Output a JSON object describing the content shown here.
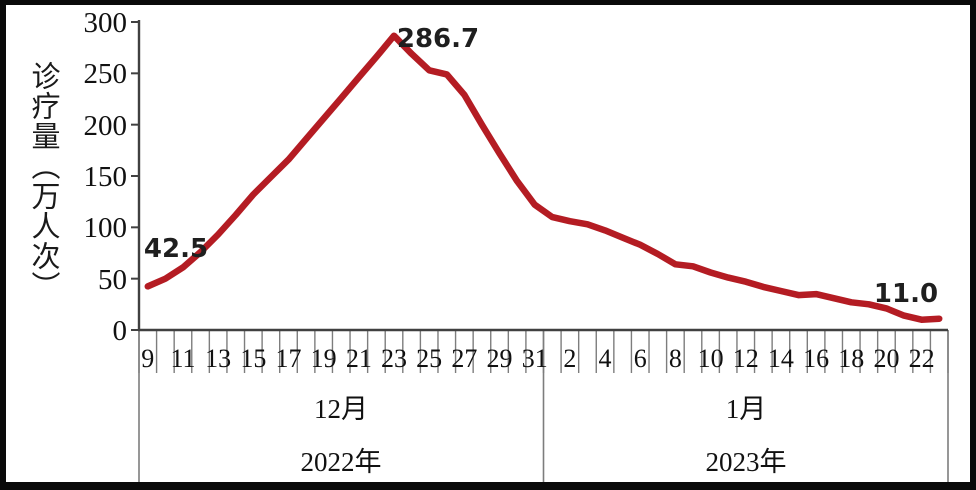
{
  "chart_data": {
    "type": "line",
    "title": "",
    "ylabel": "诊疗量（万人次）",
    "ylim": [
      0,
      300
    ],
    "y_ticks": [
      "300",
      "250",
      "200",
      "150",
      "100",
      "50",
      "0"
    ],
    "line_color": "#b41c23",
    "groups": [
      {
        "month": "12月",
        "year": "2022年",
        "days": [
          9,
          10,
          11,
          12,
          13,
          14,
          15,
          16,
          17,
          18,
          19,
          20,
          21,
          22,
          23,
          24,
          25,
          26,
          27,
          28,
          29,
          30,
          31
        ]
      },
      {
        "month": "1月",
        "year": "2023年",
        "days": [
          1,
          2,
          3,
          4,
          5,
          6,
          7,
          8,
          9,
          10,
          11,
          12,
          13,
          14,
          15,
          16,
          17,
          18,
          19,
          20,
          21,
          22,
          23
        ]
      }
    ],
    "x_tick_labels": [
      "9",
      "",
      "11",
      "",
      "13",
      "",
      "15",
      "",
      "17",
      "",
      "19",
      "",
      "21",
      "",
      "23",
      "",
      "25",
      "",
      "27",
      "",
      "29",
      "",
      "31",
      "",
      "2",
      "",
      "4",
      "",
      "6",
      "",
      "8",
      "",
      "10",
      "",
      "12",
      "",
      "14",
      "",
      "16",
      "",
      "18",
      "",
      "20",
      "",
      "22",
      ""
    ],
    "series": [
      {
        "name": "诊疗量",
        "values": [
          42.5,
          50,
          61,
          76,
          93,
          112,
          132,
          149,
          166,
          186,
          206,
          226,
          246,
          266,
          286.7,
          269,
          253,
          249,
          229,
          200,
          172,
          145,
          122,
          110,
          106,
          103,
          97,
          90,
          83,
          74,
          64,
          62,
          56,
          51,
          47,
          42,
          38,
          34,
          35,
          31,
          27,
          25,
          21,
          14,
          10,
          11
        ]
      }
    ],
    "annotations": [
      {
        "index": 0,
        "text": "42.5"
      },
      {
        "index": 14,
        "text": "286.7"
      },
      {
        "index": 45,
        "text": "11.0"
      }
    ]
  }
}
